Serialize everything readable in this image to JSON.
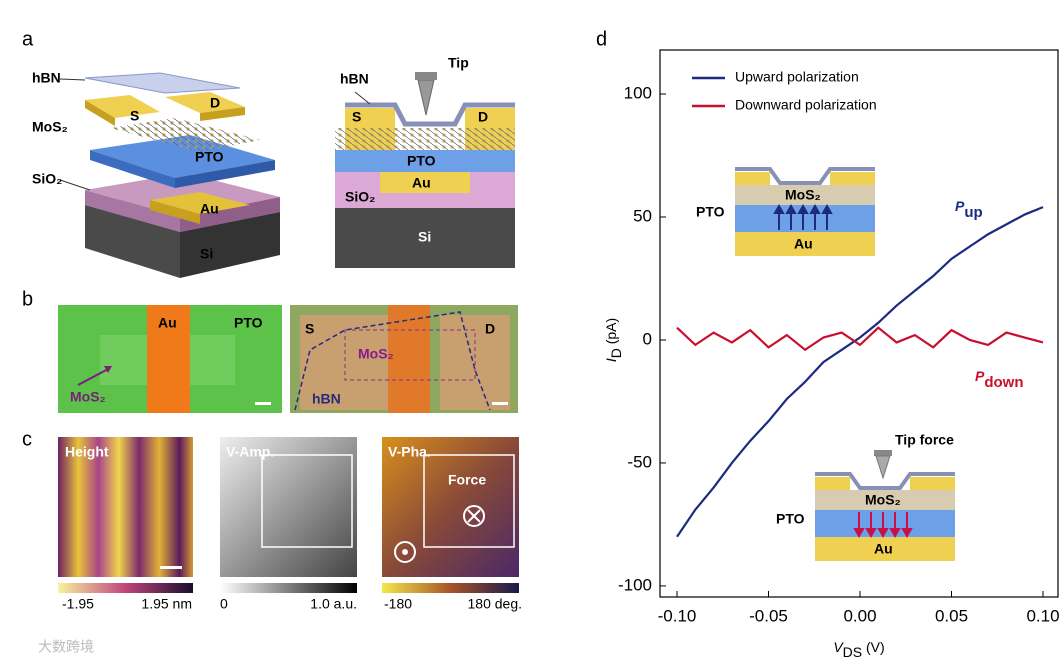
{
  "panel_labels": [
    "a",
    "b",
    "c",
    "d"
  ],
  "panel_a": {
    "stack_labels": [
      "hBN",
      "MoS₂",
      "SiO₂",
      "S",
      "D",
      "PTO",
      "Au",
      "Si"
    ],
    "cross_section_labels": [
      "Tip",
      "hBN",
      "S",
      "D",
      "PTO",
      "Au",
      "SiO₂",
      "Si"
    ]
  },
  "panel_b": {
    "left_labels": [
      "Au",
      "PTO",
      "MoS₂"
    ],
    "right_labels": [
      "S",
      "D",
      "MoS₂",
      "hBN"
    ]
  },
  "panel_c": {
    "images": [
      {
        "title": "Height",
        "min": "-1.95",
        "max": "1.95 nm"
      },
      {
        "title": "V-Amp.",
        "min": "0",
        "max": "1.0 a.u."
      },
      {
        "title": "V-Pha.",
        "min": "-180",
        "max": "180 deg."
      }
    ],
    "annotation": "Force"
  },
  "watermark": "大数跨境",
  "chart_data": {
    "type": "line",
    "x_label": {
      "main": "V",
      "sub": "DS",
      "rest": " (V)"
    },
    "y_label": {
      "main": "I",
      "sub": "D",
      "rest": " (pA)"
    },
    "x": [
      -0.1,
      -0.09,
      -0.08,
      -0.07,
      -0.06,
      -0.05,
      -0.04,
      -0.03,
      -0.02,
      -0.01,
      0,
      0.01,
      0.02,
      0.03,
      0.04,
      0.05,
      0.06,
      0.07,
      0.08,
      0.09,
      0.1
    ],
    "series": [
      {
        "name": "Upward polarization",
        "color": "#1c2a80",
        "values": [
          -80,
          -69,
          -60,
          -50,
          -41,
          -33,
          -24,
          -17,
          -9,
          -4,
          1,
          7,
          14,
          20,
          26,
          33,
          38,
          43,
          47,
          51,
          54
        ]
      },
      {
        "name": "Downward polarization",
        "color": "#c8102e",
        "values": [
          5,
          -2,
          3,
          -1,
          4,
          -3,
          2,
          -4,
          1,
          3,
          -2,
          5,
          -1,
          2,
          -3,
          4,
          0,
          -2,
          3,
          1,
          -1
        ]
      }
    ],
    "xlim": [
      -0.1093,
      0.1082
    ],
    "ylim": [
      -104.5,
      117.9
    ],
    "xticks": [
      {
        "value": -0.1,
        "label": "-0.10"
      },
      {
        "value": -0.05,
        "label": "-0.05"
      },
      {
        "value": 0,
        "label": "0.00"
      },
      {
        "value": 0.05,
        "label": "0.05"
      },
      {
        "value": 0.1,
        "label": "0.10"
      }
    ],
    "yticks": [
      -100,
      -50,
      0,
      50,
      100
    ],
    "legend": "upper left",
    "annotations": [
      {
        "main": "P",
        "sub": "up",
        "color": "#1c2a80"
      },
      {
        "main": "P",
        "sub": "down",
        "color": "#c8102e"
      }
    ],
    "insets": [
      {
        "labels": [
          "MoS₂",
          "PTO",
          "Au"
        ]
      },
      {
        "title": "Tip force",
        "labels": [
          "MoS₂",
          "PTO",
          "Au"
        ]
      }
    ]
  }
}
